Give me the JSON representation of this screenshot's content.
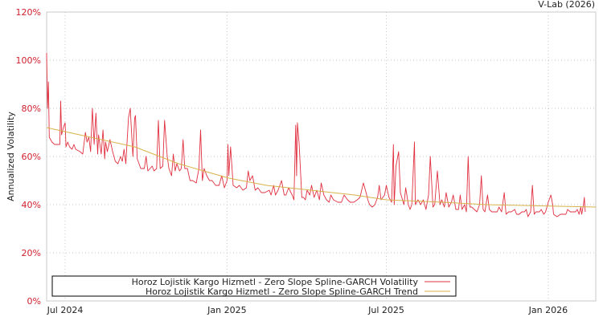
{
  "chart_data": {
    "type": "line",
    "title": "",
    "credit": "V-Lab (2026)",
    "xlabel": "",
    "ylabel": "Annualized Volatility",
    "x_unit": "days since start of series",
    "xlim": [
      0,
      624
    ],
    "ylim": [
      0,
      120
    ],
    "yticks": [
      0,
      20,
      40,
      60,
      80,
      100,
      120
    ],
    "ytick_labels": [
      "0%",
      "20%",
      "40%",
      "60%",
      "80%",
      "100%",
      "120%"
    ],
    "xticks": [
      21,
      205,
      386,
      570
    ],
    "xtick_labels": [
      "Jul 2024",
      "Jan 2025",
      "Jul 2025",
      "Jan 2026"
    ],
    "grid": true,
    "legend_position": "bottom-left",
    "series": [
      {
        "name": "Horoz Lojistik Kargo Hizmetl - Zero Slope Spline-GARCH Volatility",
        "color": "#e03040",
        "points": [
          [
            0,
            103
          ],
          [
            1,
            80
          ],
          [
            2,
            91
          ],
          [
            3,
            68
          ],
          [
            6,
            66
          ],
          [
            9,
            65
          ],
          [
            15,
            65
          ],
          [
            16,
            83
          ],
          [
            17,
            69
          ],
          [
            19,
            72
          ],
          [
            21,
            74
          ],
          [
            22,
            64
          ],
          [
            24,
            66
          ],
          [
            26,
            64
          ],
          [
            29,
            63
          ],
          [
            31,
            65
          ],
          [
            33,
            63
          ],
          [
            38,
            62
          ],
          [
            41,
            61
          ],
          [
            44,
            70
          ],
          [
            46,
            66
          ],
          [
            48,
            68
          ],
          [
            50,
            62
          ],
          [
            52,
            80
          ],
          [
            54,
            65
          ],
          [
            56,
            78
          ],
          [
            58,
            61
          ],
          [
            59,
            69
          ],
          [
            62,
            61
          ],
          [
            64,
            71
          ],
          [
            66,
            59
          ],
          [
            67,
            66
          ],
          [
            69,
            62
          ],
          [
            72,
            67
          ],
          [
            75,
            62
          ],
          [
            78,
            58
          ],
          [
            81,
            57
          ],
          [
            84,
            60
          ],
          [
            86,
            58
          ],
          [
            88,
            63
          ],
          [
            90,
            57
          ],
          [
            93,
            76
          ],
          [
            95,
            80
          ],
          [
            98,
            60
          ],
          [
            100,
            76
          ],
          [
            101,
            77
          ],
          [
            103,
            59
          ],
          [
            107,
            55
          ],
          [
            111,
            55
          ],
          [
            113,
            60
          ],
          [
            115,
            54
          ],
          [
            120,
            56
          ],
          [
            122,
            54
          ],
          [
            125,
            55
          ],
          [
            127,
            75
          ],
          [
            129,
            55
          ],
          [
            132,
            56
          ],
          [
            134,
            75
          ],
          [
            137,
            60
          ],
          [
            139,
            55
          ],
          [
            142,
            52
          ],
          [
            144,
            61
          ],
          [
            146,
            54
          ],
          [
            148,
            57
          ],
          [
            151,
            54
          ],
          [
            153,
            55
          ],
          [
            155,
            67
          ],
          [
            157,
            55
          ],
          [
            160,
            55
          ],
          [
            163,
            50
          ],
          [
            166,
            50
          ],
          [
            170,
            49
          ],
          [
            173,
            55
          ],
          [
            175,
            71
          ],
          [
            177,
            50
          ],
          [
            179,
            55
          ],
          [
            182,
            52
          ],
          [
            185,
            50
          ],
          [
            188,
            50
          ],
          [
            192,
            48
          ],
          [
            196,
            48
          ],
          [
            199,
            52
          ],
          [
            202,
            47
          ],
          [
            205,
            50
          ],
          [
            206,
            65
          ],
          [
            207,
            52
          ],
          [
            209,
            64
          ],
          [
            212,
            48
          ],
          [
            216,
            47
          ],
          [
            219,
            48
          ],
          [
            223,
            46
          ],
          [
            227,
            47
          ],
          [
            229,
            54
          ],
          [
            231,
            50
          ],
          [
            234,
            52
          ],
          [
            237,
            46
          ],
          [
            240,
            47
          ],
          [
            244,
            45
          ],
          [
            248,
            45
          ],
          [
            253,
            46
          ],
          [
            255,
            44
          ],
          [
            258,
            48
          ],
          [
            260,
            44
          ],
          [
            263,
            46
          ],
          [
            267,
            50
          ],
          [
            270,
            44
          ],
          [
            272,
            44
          ],
          [
            275,
            47
          ],
          [
            279,
            44
          ],
          [
            281,
            42
          ],
          [
            283,
            73
          ],
          [
            284,
            52
          ],
          [
            285,
            74
          ],
          [
            287,
            65
          ],
          [
            290,
            43
          ],
          [
            292,
            43
          ],
          [
            294,
            42
          ],
          [
            296,
            46
          ],
          [
            299,
            44
          ],
          [
            301,
            48
          ],
          [
            304,
            43
          ],
          [
            307,
            46
          ],
          [
            310,
            42
          ],
          [
            312,
            49
          ],
          [
            315,
            44
          ],
          [
            318,
            42
          ],
          [
            321,
            41
          ],
          [
            323,
            44
          ],
          [
            326,
            42
          ],
          [
            331,
            41
          ],
          [
            335,
            41
          ],
          [
            338,
            44
          ],
          [
            342,
            42
          ],
          [
            345,
            41
          ],
          [
            349,
            41
          ],
          [
            353,
            42
          ],
          [
            356,
            43
          ],
          [
            360,
            49
          ],
          [
            363,
            45
          ],
          [
            365,
            42
          ],
          [
            367,
            40
          ],
          [
            370,
            39
          ],
          [
            373,
            40
          ],
          [
            376,
            43
          ],
          [
            378,
            48
          ],
          [
            380,
            42
          ],
          [
            384,
            44
          ],
          [
            386,
            48
          ],
          [
            389,
            43
          ],
          [
            392,
            41
          ],
          [
            394,
            65
          ],
          [
            395,
            40
          ],
          [
            397,
            56
          ],
          [
            400,
            62
          ],
          [
            402,
            45
          ],
          [
            406,
            40
          ],
          [
            408,
            47
          ],
          [
            411,
            40
          ],
          [
            413,
            38
          ],
          [
            415,
            40
          ],
          [
            418,
            66
          ],
          [
            419,
            40
          ],
          [
            422,
            42
          ],
          [
            425,
            40
          ],
          [
            428,
            42
          ],
          [
            431,
            38
          ],
          [
            434,
            44
          ],
          [
            436,
            60
          ],
          [
            439,
            39
          ],
          [
            441,
            40
          ],
          [
            444,
            54
          ],
          [
            447,
            40
          ],
          [
            449,
            42
          ],
          [
            452,
            39
          ],
          [
            454,
            45
          ],
          [
            457,
            39
          ],
          [
            460,
            41
          ],
          [
            462,
            44
          ],
          [
            465,
            38
          ],
          [
            468,
            38
          ],
          [
            470,
            44
          ],
          [
            472,
            38
          ],
          [
            475,
            40
          ],
          [
            477,
            37
          ],
          [
            479,
            60
          ],
          [
            481,
            39
          ],
          [
            483,
            39
          ],
          [
            486,
            38
          ],
          [
            489,
            37
          ],
          [
            492,
            40
          ],
          [
            494,
            52
          ],
          [
            496,
            38
          ],
          [
            498,
            37
          ],
          [
            501,
            44
          ],
          [
            503,
            38
          ],
          [
            506,
            37
          ],
          [
            509,
            37
          ],
          [
            512,
            37
          ],
          [
            514,
            39
          ],
          [
            517,
            37
          ],
          [
            520,
            45
          ],
          [
            522,
            36
          ],
          [
            525,
            37
          ],
          [
            528,
            37
          ],
          [
            532,
            38
          ],
          [
            534,
            36
          ],
          [
            537,
            36
          ],
          [
            540,
            37
          ],
          [
            543,
            37
          ],
          [
            545,
            38
          ],
          [
            547,
            35
          ],
          [
            550,
            37
          ],
          [
            552,
            48
          ],
          [
            554,
            36
          ],
          [
            556,
            37
          ],
          [
            560,
            37
          ],
          [
            562,
            38
          ],
          [
            565,
            36
          ],
          [
            567,
            37
          ],
          [
            570,
            41
          ],
          [
            573,
            44
          ],
          [
            575,
            40
          ],
          [
            576,
            36
          ],
          [
            580,
            35
          ],
          [
            584,
            36
          ],
          [
            587,
            36
          ],
          [
            590,
            36
          ],
          [
            592,
            38
          ],
          [
            595,
            37
          ],
          [
            597,
            37
          ],
          [
            601,
            37
          ],
          [
            603,
            38
          ],
          [
            605,
            36
          ],
          [
            607,
            39
          ],
          [
            608,
            36
          ],
          [
            610,
            40
          ],
          [
            611,
            43
          ],
          [
            612,
            37
          ]
        ]
      },
      {
        "name": "Horoz Lojistik Kargo Hizmetl - Zero Slope Spline-GARCH Trend",
        "color": "#d9b24a",
        "points": [
          [
            0,
            72
          ],
          [
            50,
            68
          ],
          [
            100,
            64
          ],
          [
            150,
            57
          ],
          [
            207,
            51
          ],
          [
            250,
            48
          ],
          [
            300,
            46
          ],
          [
            350,
            44
          ],
          [
            386,
            42
          ],
          [
            450,
            41
          ],
          [
            500,
            40
          ],
          [
            560,
            39.5
          ],
          [
            624,
            39
          ]
        ]
      }
    ]
  }
}
